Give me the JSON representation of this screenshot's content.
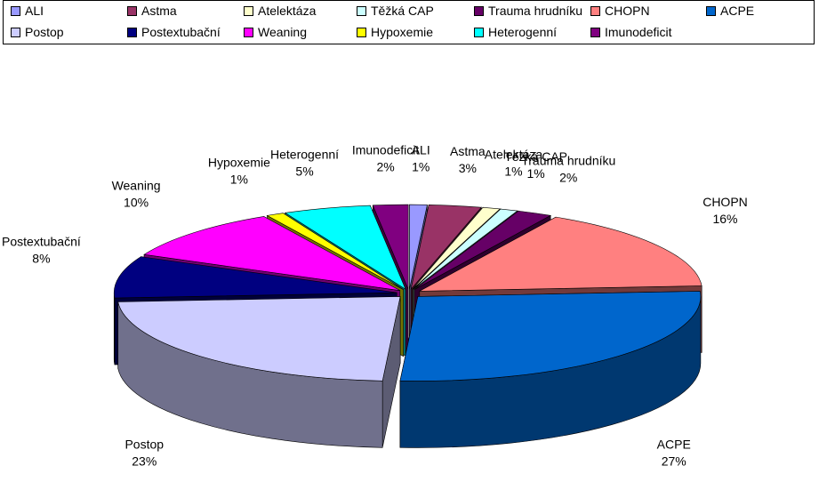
{
  "chart_data": {
    "type": "pie",
    "style": "3d-exploded",
    "legend_position": "top",
    "categories": [
      "ALI",
      "Astma",
      "Atelektáza",
      "Těžká CAP",
      "Trauma hrudníku",
      "CHOPN",
      "ACPE",
      "Postop",
      "Postextubační",
      "Weaning",
      "Hypoxemie",
      "Heterogenní",
      "Imunodeficit"
    ],
    "values": [
      1,
      3,
      1,
      1,
      2,
      16,
      27,
      23,
      8,
      10,
      1,
      5,
      2
    ],
    "value_labels": [
      "1%",
      "3%",
      "1%",
      "1%",
      "2%",
      "16%",
      "27%",
      "23%",
      "8%",
      "10%",
      "1%",
      "5%",
      "2%"
    ],
    "colors": [
      "#9999FF",
      "#993366",
      "#FFFFCC",
      "#CCFFFF",
      "#660066",
      "#FF8080",
      "#0066CC",
      "#CCCCFF",
      "#000080",
      "#FF00FF",
      "#FFFF00",
      "#00FFFF",
      "#800080"
    ]
  }
}
